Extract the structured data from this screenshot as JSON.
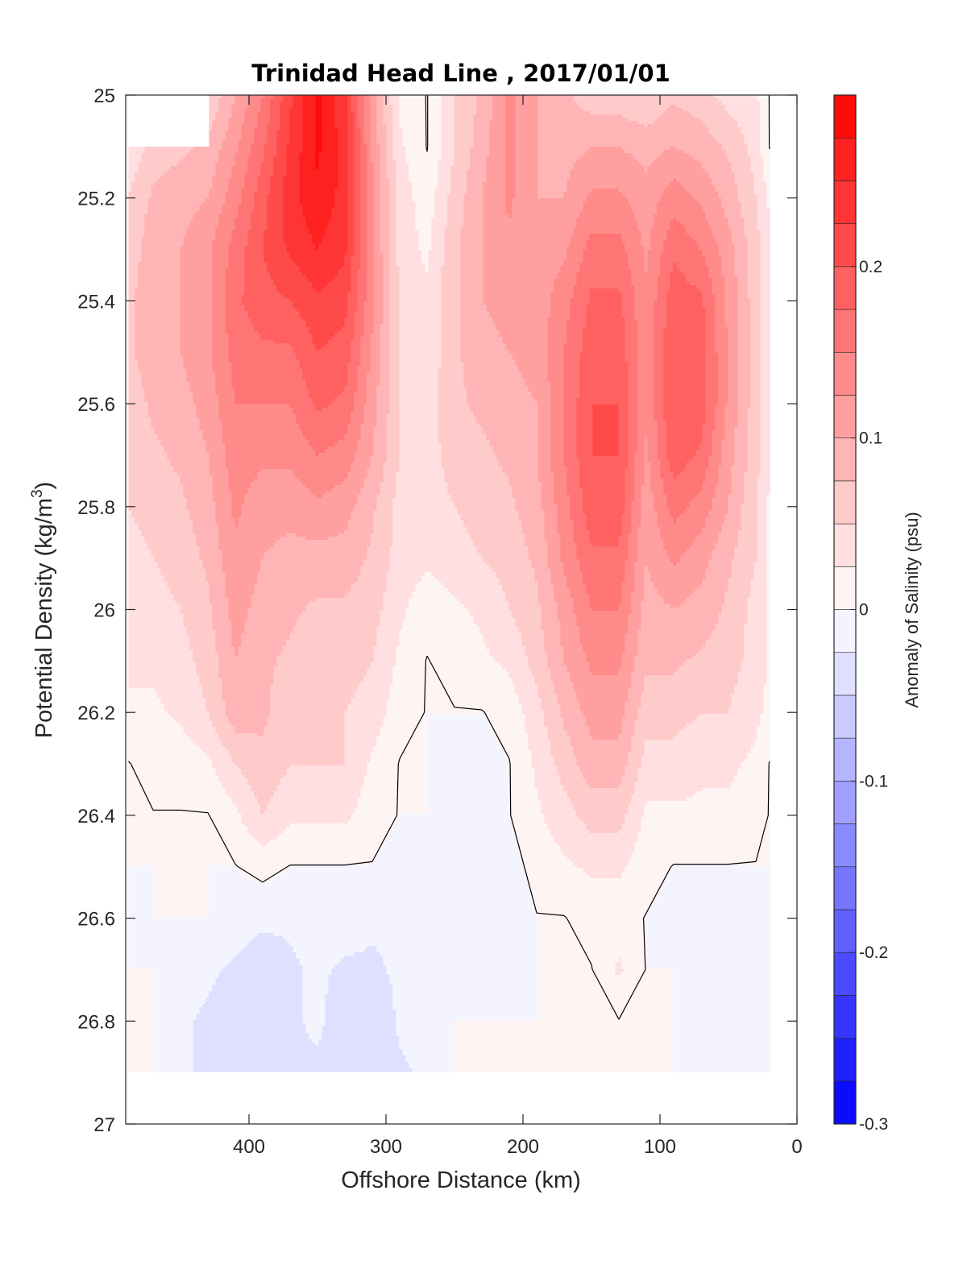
{
  "chart_data": {
    "type": "heatmap",
    "title": "Trinidad Head Line , 2017/01/01",
    "xlabel": "Offshore Distance (km)",
    "ylabel_main": "Potential Density (kg/m",
    "ylabel_sup": "3",
    "ylabel_end": ")",
    "colorbar_label": "Anomaly of Salinity (psu)",
    "xlim": [
      490,
      0
    ],
    "ylim": [
      25,
      27
    ],
    "x_reversed": true,
    "y_reversed": true,
    "x_ticks": [
      400,
      300,
      200,
      100,
      0
    ],
    "x_tick_labels": [
      "400",
      "300",
      "200",
      "100",
      "0"
    ],
    "y_ticks": [
      25,
      25.2,
      25.4,
      25.6,
      25.8,
      26,
      26.2,
      26.4,
      26.6,
      26.8,
      27
    ],
    "y_tick_labels": [
      "25",
      "25.2",
      "25.4",
      "25.6",
      "25.8",
      "26",
      "26.2",
      "26.4",
      "26.6",
      "26.8",
      "27"
    ],
    "colorbar": {
      "clim": [
        -0.3,
        0.3
      ],
      "level_step": 0.025,
      "ticks": [
        -0.3,
        -0.2,
        -0.1,
        0,
        0.1,
        0.2
      ],
      "tick_labels": [
        "-0.3",
        "-0.2",
        "-0.1",
        "0",
        "0.1",
        "0.2"
      ],
      "colormap": "blue-white-red",
      "neg_color": "#0000ff",
      "pos_color": "#ff0000"
    },
    "data_extent": {
      "x": [
        488,
        20
      ],
      "y": [
        25,
        26.9
      ]
    },
    "grid": {
      "x": [
        488,
        470,
        450,
        430,
        410,
        390,
        370,
        350,
        330,
        310,
        290,
        270,
        250,
        230,
        210,
        190,
        170,
        150,
        130,
        110,
        90,
        70,
        50,
        30,
        20
      ],
      "y": [
        25.0,
        25.1,
        25.2,
        25.3,
        25.4,
        25.5,
        25.6,
        25.7,
        25.8,
        25.9,
        26.0,
        26.1,
        26.2,
        26.3,
        26.4,
        26.5,
        26.6,
        26.7,
        26.8,
        26.9
      ],
      "z": [
        [
          null,
          null,
          null,
          0.05,
          0.1,
          0.15,
          0.22,
          0.28,
          0.23,
          0.11,
          0.02,
          0.0,
          0.05,
          0.08,
          0.13,
          0.1,
          0.08,
          0.06,
          0.06,
          0.05,
          0.07,
          0.06,
          0.04,
          0.03,
          0.0
        ],
        [
          0.03,
          0.06,
          0.07,
          0.08,
          0.12,
          0.17,
          0.23,
          0.28,
          0.24,
          0.12,
          0.03,
          0.0,
          0.05,
          0.09,
          0.13,
          0.1,
          0.09,
          0.1,
          0.1,
          0.09,
          0.1,
          0.09,
          0.07,
          0.04,
          0.0
        ],
        [
          0.05,
          0.08,
          0.09,
          0.1,
          0.14,
          0.19,
          0.24,
          0.27,
          0.24,
          0.13,
          0.04,
          0.01,
          0.06,
          0.1,
          0.13,
          0.1,
          0.1,
          0.13,
          0.13,
          0.11,
          0.14,
          0.12,
          0.09,
          0.05,
          0.02
        ],
        [
          0.06,
          0.09,
          0.1,
          0.12,
          0.16,
          0.2,
          0.23,
          0.25,
          0.23,
          0.13,
          0.04,
          0.02,
          0.07,
          0.1,
          0.12,
          0.11,
          0.12,
          0.16,
          0.16,
          0.12,
          0.17,
          0.15,
          0.11,
          0.06,
          0.03
        ],
        [
          0.07,
          0.09,
          0.1,
          0.12,
          0.17,
          0.19,
          0.2,
          0.22,
          0.21,
          0.13,
          0.05,
          0.03,
          0.07,
          0.1,
          0.11,
          0.11,
          0.14,
          0.18,
          0.18,
          0.13,
          0.19,
          0.18,
          0.12,
          0.06,
          0.03
        ],
        [
          0.07,
          0.09,
          0.1,
          0.12,
          0.16,
          0.17,
          0.17,
          0.2,
          0.19,
          0.12,
          0.05,
          0.03,
          0.07,
          0.09,
          0.1,
          0.11,
          0.15,
          0.19,
          0.19,
          0.13,
          0.2,
          0.19,
          0.12,
          0.06,
          0.03
        ],
        [
          0.06,
          0.08,
          0.09,
          0.11,
          0.15,
          0.15,
          0.15,
          0.18,
          0.17,
          0.11,
          0.05,
          0.04,
          0.07,
          0.08,
          0.09,
          0.1,
          0.15,
          0.2,
          0.2,
          0.13,
          0.2,
          0.19,
          0.12,
          0.06,
          0.03
        ],
        [
          0.06,
          0.07,
          0.08,
          0.1,
          0.14,
          0.13,
          0.13,
          0.15,
          0.14,
          0.1,
          0.05,
          0.04,
          0.06,
          0.07,
          0.08,
          0.1,
          0.15,
          0.2,
          0.2,
          0.12,
          0.19,
          0.17,
          0.11,
          0.06,
          0.03
        ],
        [
          0.05,
          0.06,
          0.07,
          0.09,
          0.13,
          0.11,
          0.11,
          0.12,
          0.11,
          0.08,
          0.04,
          0.04,
          0.05,
          0.06,
          0.07,
          0.09,
          0.14,
          0.19,
          0.19,
          0.11,
          0.16,
          0.14,
          0.1,
          0.05,
          0.02
        ],
        [
          0.04,
          0.05,
          0.06,
          0.08,
          0.12,
          0.1,
          0.09,
          0.09,
          0.09,
          0.07,
          0.04,
          0.03,
          0.04,
          0.05,
          0.06,
          0.08,
          0.13,
          0.17,
          0.17,
          0.1,
          0.13,
          0.11,
          0.08,
          0.05,
          0.02
        ],
        [
          0.03,
          0.04,
          0.05,
          0.07,
          0.11,
          0.09,
          0.08,
          0.07,
          0.07,
          0.06,
          0.03,
          0.01,
          0.02,
          0.03,
          0.05,
          0.07,
          0.11,
          0.15,
          0.15,
          0.09,
          0.1,
          0.09,
          0.07,
          0.04,
          0.02
        ],
        [
          0.03,
          0.03,
          0.04,
          0.06,
          0.1,
          0.08,
          0.07,
          0.06,
          0.06,
          0.05,
          0.02,
          0.0,
          0.01,
          0.02,
          0.03,
          0.06,
          0.1,
          0.13,
          0.13,
          0.08,
          0.08,
          0.07,
          0.06,
          0.04,
          0.02
        ],
        [
          0.02,
          0.02,
          0.03,
          0.05,
          0.09,
          0.08,
          0.06,
          0.06,
          0.05,
          0.04,
          0.01,
          0.0,
          0.0,
          0.0,
          0.01,
          0.04,
          0.08,
          0.11,
          0.11,
          0.06,
          0.06,
          0.05,
          0.05,
          0.03,
          0.02
        ],
        [
          0.0,
          0.01,
          0.01,
          0.02,
          0.05,
          0.07,
          0.05,
          0.05,
          0.05,
          0.02,
          0.0,
          0.0,
          -0.01,
          -0.01,
          0.0,
          0.03,
          0.06,
          0.09,
          0.09,
          0.04,
          0.04,
          0.03,
          0.03,
          0.02,
          0.0
        ],
        [
          0.0,
          0.0,
          0.0,
          0.0,
          0.02,
          0.05,
          0.03,
          0.03,
          0.03,
          0.01,
          0.0,
          0.0,
          -0.01,
          -0.02,
          0.0,
          0.02,
          0.04,
          0.06,
          0.06,
          0.02,
          0.02,
          0.02,
          0.02,
          0.01,
          0.0
        ],
        [
          0.0,
          0.0,
          0.0,
          0.0,
          0.0,
          0.01,
          0.0,
          0.0,
          0.0,
          0.0,
          -0.01,
          -0.01,
          -0.01,
          -0.02,
          -0.01,
          0.01,
          0.02,
          0.03,
          0.03,
          0.01,
          0.0,
          0.0,
          0.0,
          0.0,
          0.0
        ],
        [
          -0.01,
          0.0,
          0.0,
          0.0,
          -0.01,
          -0.02,
          -0.02,
          -0.01,
          -0.01,
          -0.02,
          -0.02,
          -0.01,
          -0.01,
          -0.02,
          -0.02,
          0.0,
          0.0,
          0.01,
          0.01,
          0.0,
          -0.01,
          -0.02,
          -0.02,
          -0.01,
          0.0
        ],
        [
          0.0,
          0.0,
          -0.01,
          -0.02,
          -0.03,
          -0.04,
          -0.03,
          -0.02,
          -0.03,
          -0.03,
          -0.02,
          -0.01,
          -0.01,
          -0.01,
          -0.01,
          0.0,
          0.0,
          0.0,
          0.03,
          0.0,
          0.0,
          -0.02,
          -0.02,
          -0.01,
          0.0
        ],
        [
          0.0,
          0.0,
          -0.02,
          -0.03,
          -0.04,
          -0.05,
          -0.03,
          -0.02,
          -0.04,
          -0.05,
          -0.02,
          -0.01,
          0.0,
          0.0,
          0.0,
          0.0,
          0.0,
          0.0,
          0.0,
          0.0,
          0.0,
          -0.01,
          -0.02,
          -0.01,
          0.0
        ],
        [
          0.0,
          0.0,
          -0.02,
          -0.03,
          -0.03,
          -0.03,
          -0.03,
          -0.03,
          -0.04,
          -0.04,
          -0.03,
          -0.02,
          0.0,
          0.0,
          0.0,
          0.0,
          0.0,
          0.0,
          0.0,
          0.0,
          0.0,
          0.0,
          0.0,
          0.0,
          0.0
        ]
      ]
    }
  }
}
